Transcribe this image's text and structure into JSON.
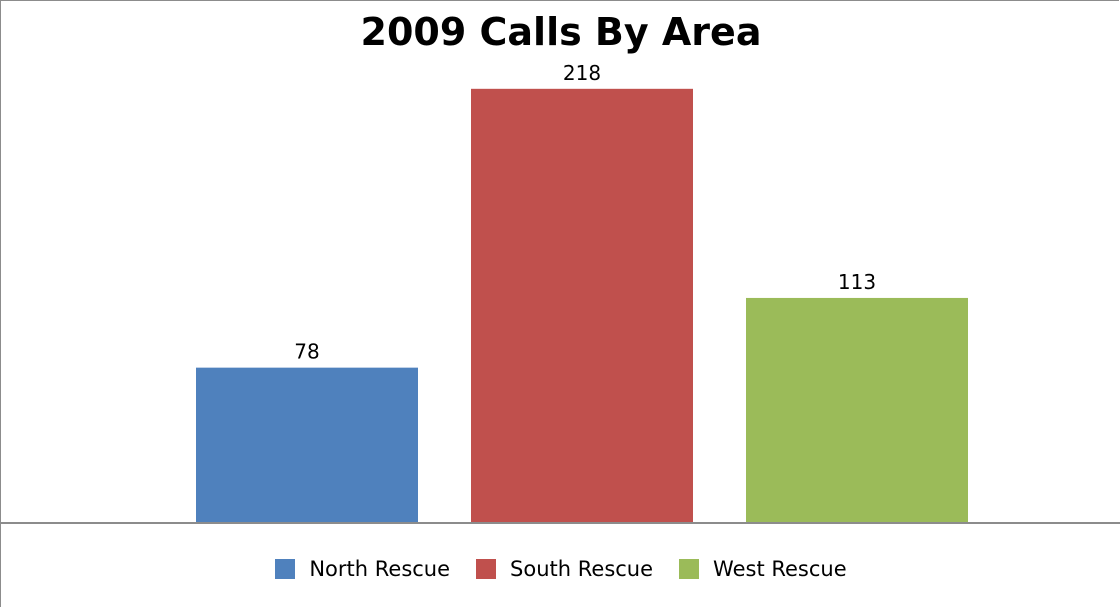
{
  "chart_data": {
    "type": "bar",
    "title": "2009 Calls By Area",
    "categories": [
      "North Rescue",
      "South Rescue",
      "West Rescue"
    ],
    "values": [
      78,
      218,
      113
    ],
    "colors": [
      "#4f81bd",
      "#c0504d",
      "#9bbb59"
    ],
    "axis_color": "#8c8c8c",
    "data_labels": true,
    "grid": false,
    "legend_position": "bottom",
    "xlabel": "",
    "ylabel": "",
    "ylim": [
      0,
      240
    ]
  }
}
